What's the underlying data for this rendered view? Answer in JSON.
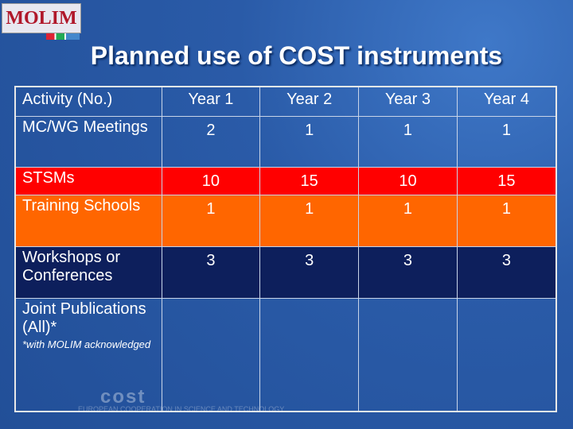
{
  "logo": "MOLIM",
  "title": "Planned use of COST instruments",
  "table": {
    "header": [
      "Activity (No.)",
      "Year 1",
      "Year 2",
      "Year 3",
      "Year 4"
    ],
    "rows": [
      [
        "MC/WG Meetings",
        2,
        1,
        1,
        1
      ],
      [
        "STSMs",
        10,
        15,
        10,
        15
      ],
      [
        "Training Schools",
        1,
        1,
        1,
        1
      ],
      [
        "Workshops or Conferences",
        3,
        3,
        3,
        3
      ],
      [
        "Joint Publications (All)*"
      ]
    ],
    "footnote": "*with MOLIM acknowledged"
  },
  "footer": {
    "brand": "cost",
    "tagline": "EUROPEAN COOPERATION IN SCIENCE AND TECHNOLOGY"
  }
}
